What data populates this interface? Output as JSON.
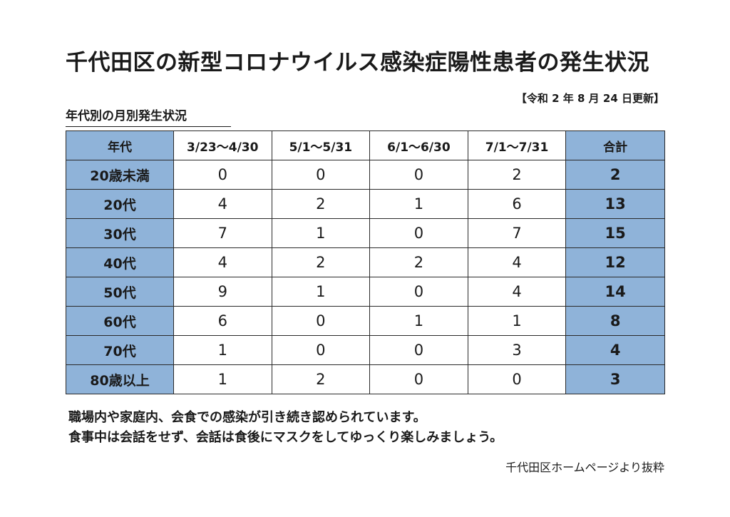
{
  "title": "千代田区の新型コロナウイルス感染症陽性患者の発生状況",
  "updated": "【令和 2 年 8 月 24 日更新】",
  "subtitle": "年代別の月別発生状況",
  "table": {
    "headers": [
      "年代",
      "3/23～4/30",
      "5/1～5/31",
      "6/1～6/30",
      "7/1～7/31",
      "合計"
    ],
    "rows": [
      {
        "label": "20歳未満",
        "values": [
          "0",
          "0",
          "0",
          "2"
        ],
        "total": "2"
      },
      {
        "label": "20代",
        "values": [
          "4",
          "2",
          "1",
          "6"
        ],
        "total": "13"
      },
      {
        "label": "30代",
        "values": [
          "7",
          "1",
          "0",
          "7"
        ],
        "total": "15"
      },
      {
        "label": "40代",
        "values": [
          "4",
          "2",
          "2",
          "4"
        ],
        "total": "12"
      },
      {
        "label": "50代",
        "values": [
          "9",
          "1",
          "0",
          "4"
        ],
        "total": "14"
      },
      {
        "label": "60代",
        "values": [
          "6",
          "0",
          "1",
          "1"
        ],
        "total": "8"
      },
      {
        "label": "70代",
        "values": [
          "1",
          "0",
          "0",
          "3"
        ],
        "total": "4"
      },
      {
        "label": "80歳以上",
        "values": [
          "1",
          "2",
          "0",
          "0"
        ],
        "total": "3"
      }
    ]
  },
  "notes": [
    "職場内や家庭内、会食での感染が引き続き認められています。",
    "食事中は会話をせず、会話は食後にマスクをしてゆっくり楽しみましょう。"
  ],
  "source": "千代田区ホームページより抜粋",
  "colors": {
    "header_fill": "#8fb3d9",
    "border": "#2a2a2a"
  }
}
